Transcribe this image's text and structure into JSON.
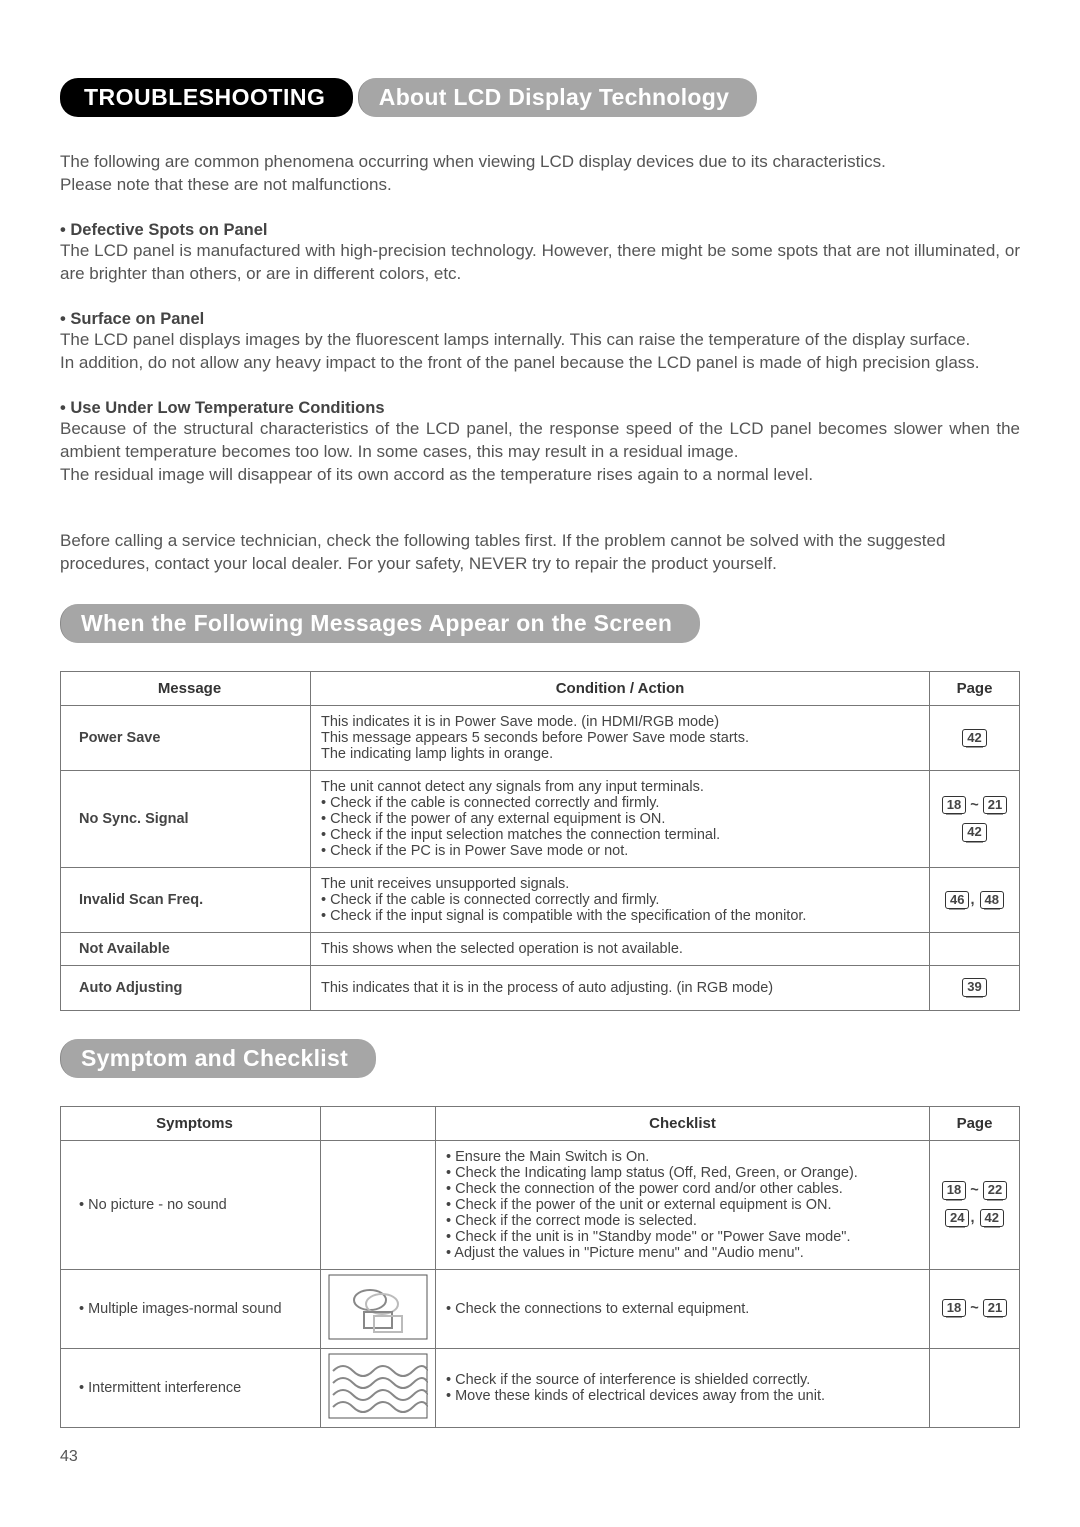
{
  "header": {
    "title": "TROUBLESHOOTING"
  },
  "section1": {
    "heading": "About LCD Display Technology",
    "intro1": "The following are common phenomena occurring when viewing LCD display devices due to its characteristics.",
    "intro2": "Please note that these are not malfunctions.",
    "b1_head": "• Defective Spots on Panel",
    "b1_text": "The LCD panel is manufactured with high-precision technology. However, there might be some spots that are not illuminated, or are brighter than others, or are in different colors, etc.",
    "b2_head": "• Surface on Panel",
    "b2_text1": "The LCD panel displays images by the fluorescent lamps internally. This can raise the temperature of the display surface.",
    "b2_text2": "In addition, do not allow any heavy impact to the front of the panel because the LCD panel is made of high precision glass.",
    "b3_head": "• Use Under Low Temperature Conditions",
    "b3_text1": "Because of the structural characteristics of the LCD panel, the response speed of the LCD panel becomes slower when the ambient temperature becomes too low. In some cases, this may result in a residual image.",
    "b3_text2": "The residual image will disappear of its own accord as the temperature rises again to a normal level.",
    "before_call": "Before calling a service technician, check the following tables first. If the problem cannot be solved with the suggested procedures, contact your local dealer. For your safety, NEVER try to repair the product yourself."
  },
  "section2": {
    "heading": "When the Following Messages Appear on the Screen",
    "cols": {
      "c1": "Message",
      "c2": "Condition / Action",
      "c3": "Page"
    },
    "rows": [
      {
        "msg": "Power Save",
        "cond": "This indicates it is in Power Save mode. (in HDMI/RGB mode)\nThis message appears 5 seconds before Power Save mode starts.\nThe indicating lamp lights in orange.",
        "pages": [
          [
            "42"
          ]
        ]
      },
      {
        "msg": "No Sync. Signal",
        "cond": "The unit cannot detect any signals from any input terminals.\n• Check if the cable is connected correctly and firmly.\n• Check if the power of any external equipment is ON.\n• Check if the input selection matches the connection terminal.\n• Check if the PC is in Power Save mode or not.",
        "pages": [
          [
            "18",
            "~",
            "21"
          ],
          [
            "42"
          ]
        ]
      },
      {
        "msg": "Invalid Scan Freq.",
        "cond": "The unit receives unsupported signals.\n• Check if the cable is connected correctly and firmly.\n• Check if the input signal is compatible with the specification of the monitor.",
        "pages": [
          [
            "46",
            ",",
            "48"
          ]
        ]
      },
      {
        "msg": "Not Available",
        "cond": "This shows when the selected operation is not available.",
        "pages": []
      },
      {
        "msg": "Auto Adjusting",
        "cond": "This indicates that it is in the process of auto adjusting. (in RGB mode)",
        "pages": [
          [
            "39"
          ]
        ]
      }
    ]
  },
  "section3": {
    "heading": "Symptom and Checklist",
    "cols": {
      "c1": "Symptoms",
      "c2": "",
      "c3": "Checklist",
      "c4": "Page"
    },
    "rows": [
      {
        "sym": "• No picture - no sound",
        "img": "none",
        "chk": "• Ensure the Main Switch is On.\n• Check the Indicating lamp status (Off, Red, Green, or Orange).\n• Check the connection of the power cord and/or other cables.\n• Check if the power of the unit or external equipment is ON.\n• Check if the correct mode is selected.\n• Check if the unit is in \"Standby mode\" or \"Power Save mode\".\n• Adjust the values in \"Picture menu\" and \"Audio menu\".",
        "pages": [
          [
            "18",
            "~",
            "22"
          ],
          [
            "24",
            ",",
            "42"
          ]
        ]
      },
      {
        "sym": "• Multiple images-normal sound",
        "img": "ghost",
        "chk": "• Check the connections to external equipment.",
        "pages": [
          [
            "18",
            "~",
            "21"
          ]
        ]
      },
      {
        "sym": "• Intermittent interference",
        "img": "wave",
        "chk": "• Check if the source of interference is shielded correctly.\n• Move these kinds of electrical devices away from the unit.",
        "pages": []
      }
    ]
  },
  "pagenum": "43"
}
